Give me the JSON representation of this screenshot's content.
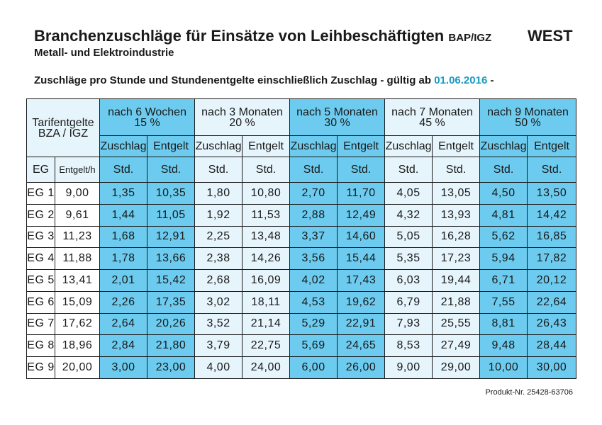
{
  "header": {
    "title": "Branchenzuschläge für Einsätze von Leihbeschäftigten",
    "title_suffix": "BAP/IGZ",
    "region": "WEST",
    "subtitle": "Metall- und Elektroindustrie",
    "info_prefix": "Zuschläge pro Stunde und Stundenentgelte einschließlich Zuschlag - gültig ab",
    "info_date": "01.06.2016",
    "info_suffix": "-"
  },
  "table": {
    "corner_label_line1": "Tarifentgelte",
    "corner_label_line2": "BZA / IGZ",
    "periods": [
      {
        "label": "nach 6 Wochen",
        "percent": "15 %"
      },
      {
        "label": "nach 3 Monaten",
        "percent": "20 %"
      },
      {
        "label": "nach 5 Monaten",
        "percent": "30 %"
      },
      {
        "label": "nach 7 Monaten",
        "percent": "45 %"
      },
      {
        "label": "nach 9 Monaten",
        "percent": "50 %"
      }
    ],
    "sub_headers": {
      "zuschlag": "Zuschlag",
      "entgelt": "Entgelt"
    },
    "unit_row": {
      "eg": "EG",
      "entgelt_h": "Entgelt/h",
      "unit": "Std."
    },
    "rows": [
      {
        "eg": "EG 1",
        "base": "9,00",
        "values": [
          "1,35",
          "10,35",
          "1,80",
          "10,80",
          "2,70",
          "11,70",
          "4,05",
          "13,05",
          "4,50",
          "13,50"
        ]
      },
      {
        "eg": "EG 2",
        "base": "9,61",
        "values": [
          "1,44",
          "11,05",
          "1,92",
          "11,53",
          "2,88",
          "12,49",
          "4,32",
          "13,93",
          "4,81",
          "14,42"
        ]
      },
      {
        "eg": "EG 3",
        "base": "11,23",
        "values": [
          "1,68",
          "12,91",
          "2,25",
          "13,48",
          "3,37",
          "14,60",
          "5,05",
          "16,28",
          "5,62",
          "16,85"
        ]
      },
      {
        "eg": "EG 4",
        "base": "11,88",
        "values": [
          "1,78",
          "13,66",
          "2,38",
          "14,26",
          "3,56",
          "15,44",
          "5,35",
          "17,23",
          "5,94",
          "17,82"
        ]
      },
      {
        "eg": "EG 5",
        "base": "13,41",
        "values": [
          "2,01",
          "15,42",
          "2,68",
          "16,09",
          "4,02",
          "17,43",
          "6,03",
          "19,44",
          "6,71",
          "20,12"
        ]
      },
      {
        "eg": "EG 6",
        "base": "15,09",
        "values": [
          "2,26",
          "17,35",
          "3,02",
          "18,11",
          "4,53",
          "19,62",
          "6,79",
          "21,88",
          "7,55",
          "22,64"
        ]
      },
      {
        "eg": "EG 7",
        "base": "17,62",
        "values": [
          "2,64",
          "20,26",
          "3,52",
          "21,14",
          "5,29",
          "22,91",
          "7,93",
          "25,55",
          "8,81",
          "26,43"
        ]
      },
      {
        "eg": "EG 8",
        "base": "18,96",
        "values": [
          "2,84",
          "21,80",
          "3,79",
          "22,75",
          "5,69",
          "24,65",
          "8,53",
          "27,49",
          "9,48",
          "28,44"
        ]
      },
      {
        "eg": "EG 9",
        "base": "20,00",
        "values": [
          "3,00",
          "23,00",
          "4,00",
          "24,00",
          "6,00",
          "26,00",
          "9,00",
          "29,00",
          "10,00",
          "30,00"
        ]
      }
    ]
  },
  "footer": {
    "product_number": "Produkt-Nr. 25428-63706"
  },
  "colors": {
    "accent_blue": "#6ccbee",
    "light_blue": "#e6f4fb",
    "date_color": "#1a9bbf"
  }
}
